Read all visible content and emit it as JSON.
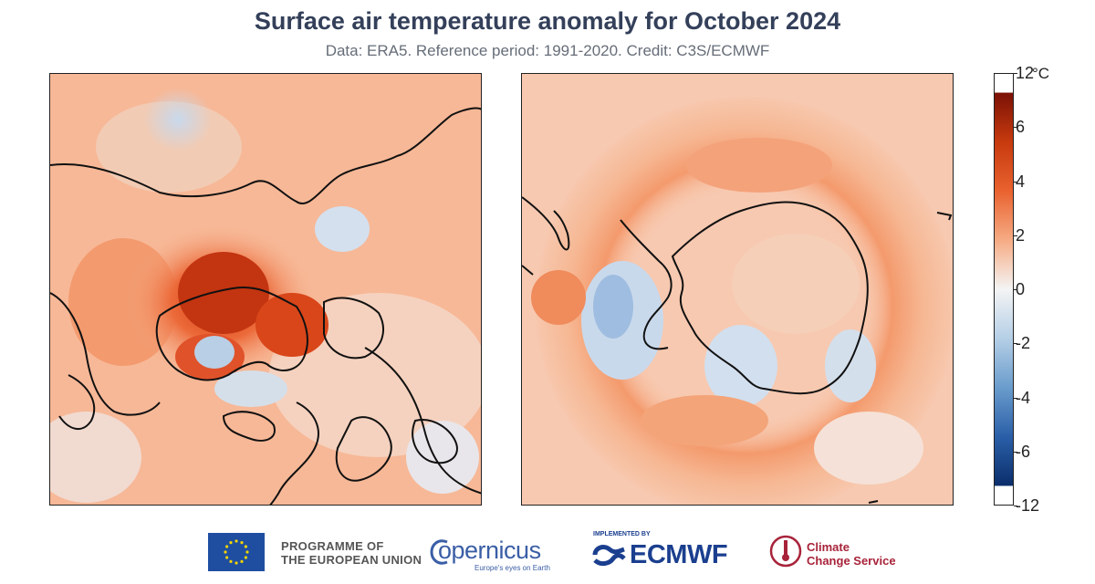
{
  "header": {
    "title": "Surface air temperature anomaly for October 2024",
    "subtitle": "Data: ERA5.  Reference period: 1991-2020.  Credit: C3S/ECMWF"
  },
  "colorbar": {
    "unit": "°C",
    "ticks": [
      "12",
      "6",
      "4",
      "2",
      "0",
      "-2",
      "-4",
      "-6",
      "-12"
    ],
    "colors": [
      "#0b2e6b",
      "#2a5fa8",
      "#6a9ccc",
      "#b5cfe6",
      "#f4f4f4",
      "#f7c2a3",
      "#f08a5f",
      "#e04f1f",
      "#7a1106"
    ]
  },
  "maps": {
    "arctic_panel": "north-polar",
    "antarctic_panel": "south-polar"
  },
  "footer": {
    "eu_line1": "PROGRAMME OF",
    "eu_line2": "THE EUROPEAN UNION",
    "copernicus": "opernicus",
    "copernicus_tagline": "Europe's eyes on Earth",
    "implemented_by": "IMPLEMENTED BY",
    "ecmwf": "ECMWF",
    "c3s_line1": "Climate",
    "c3s_line2": "Change Service"
  }
}
